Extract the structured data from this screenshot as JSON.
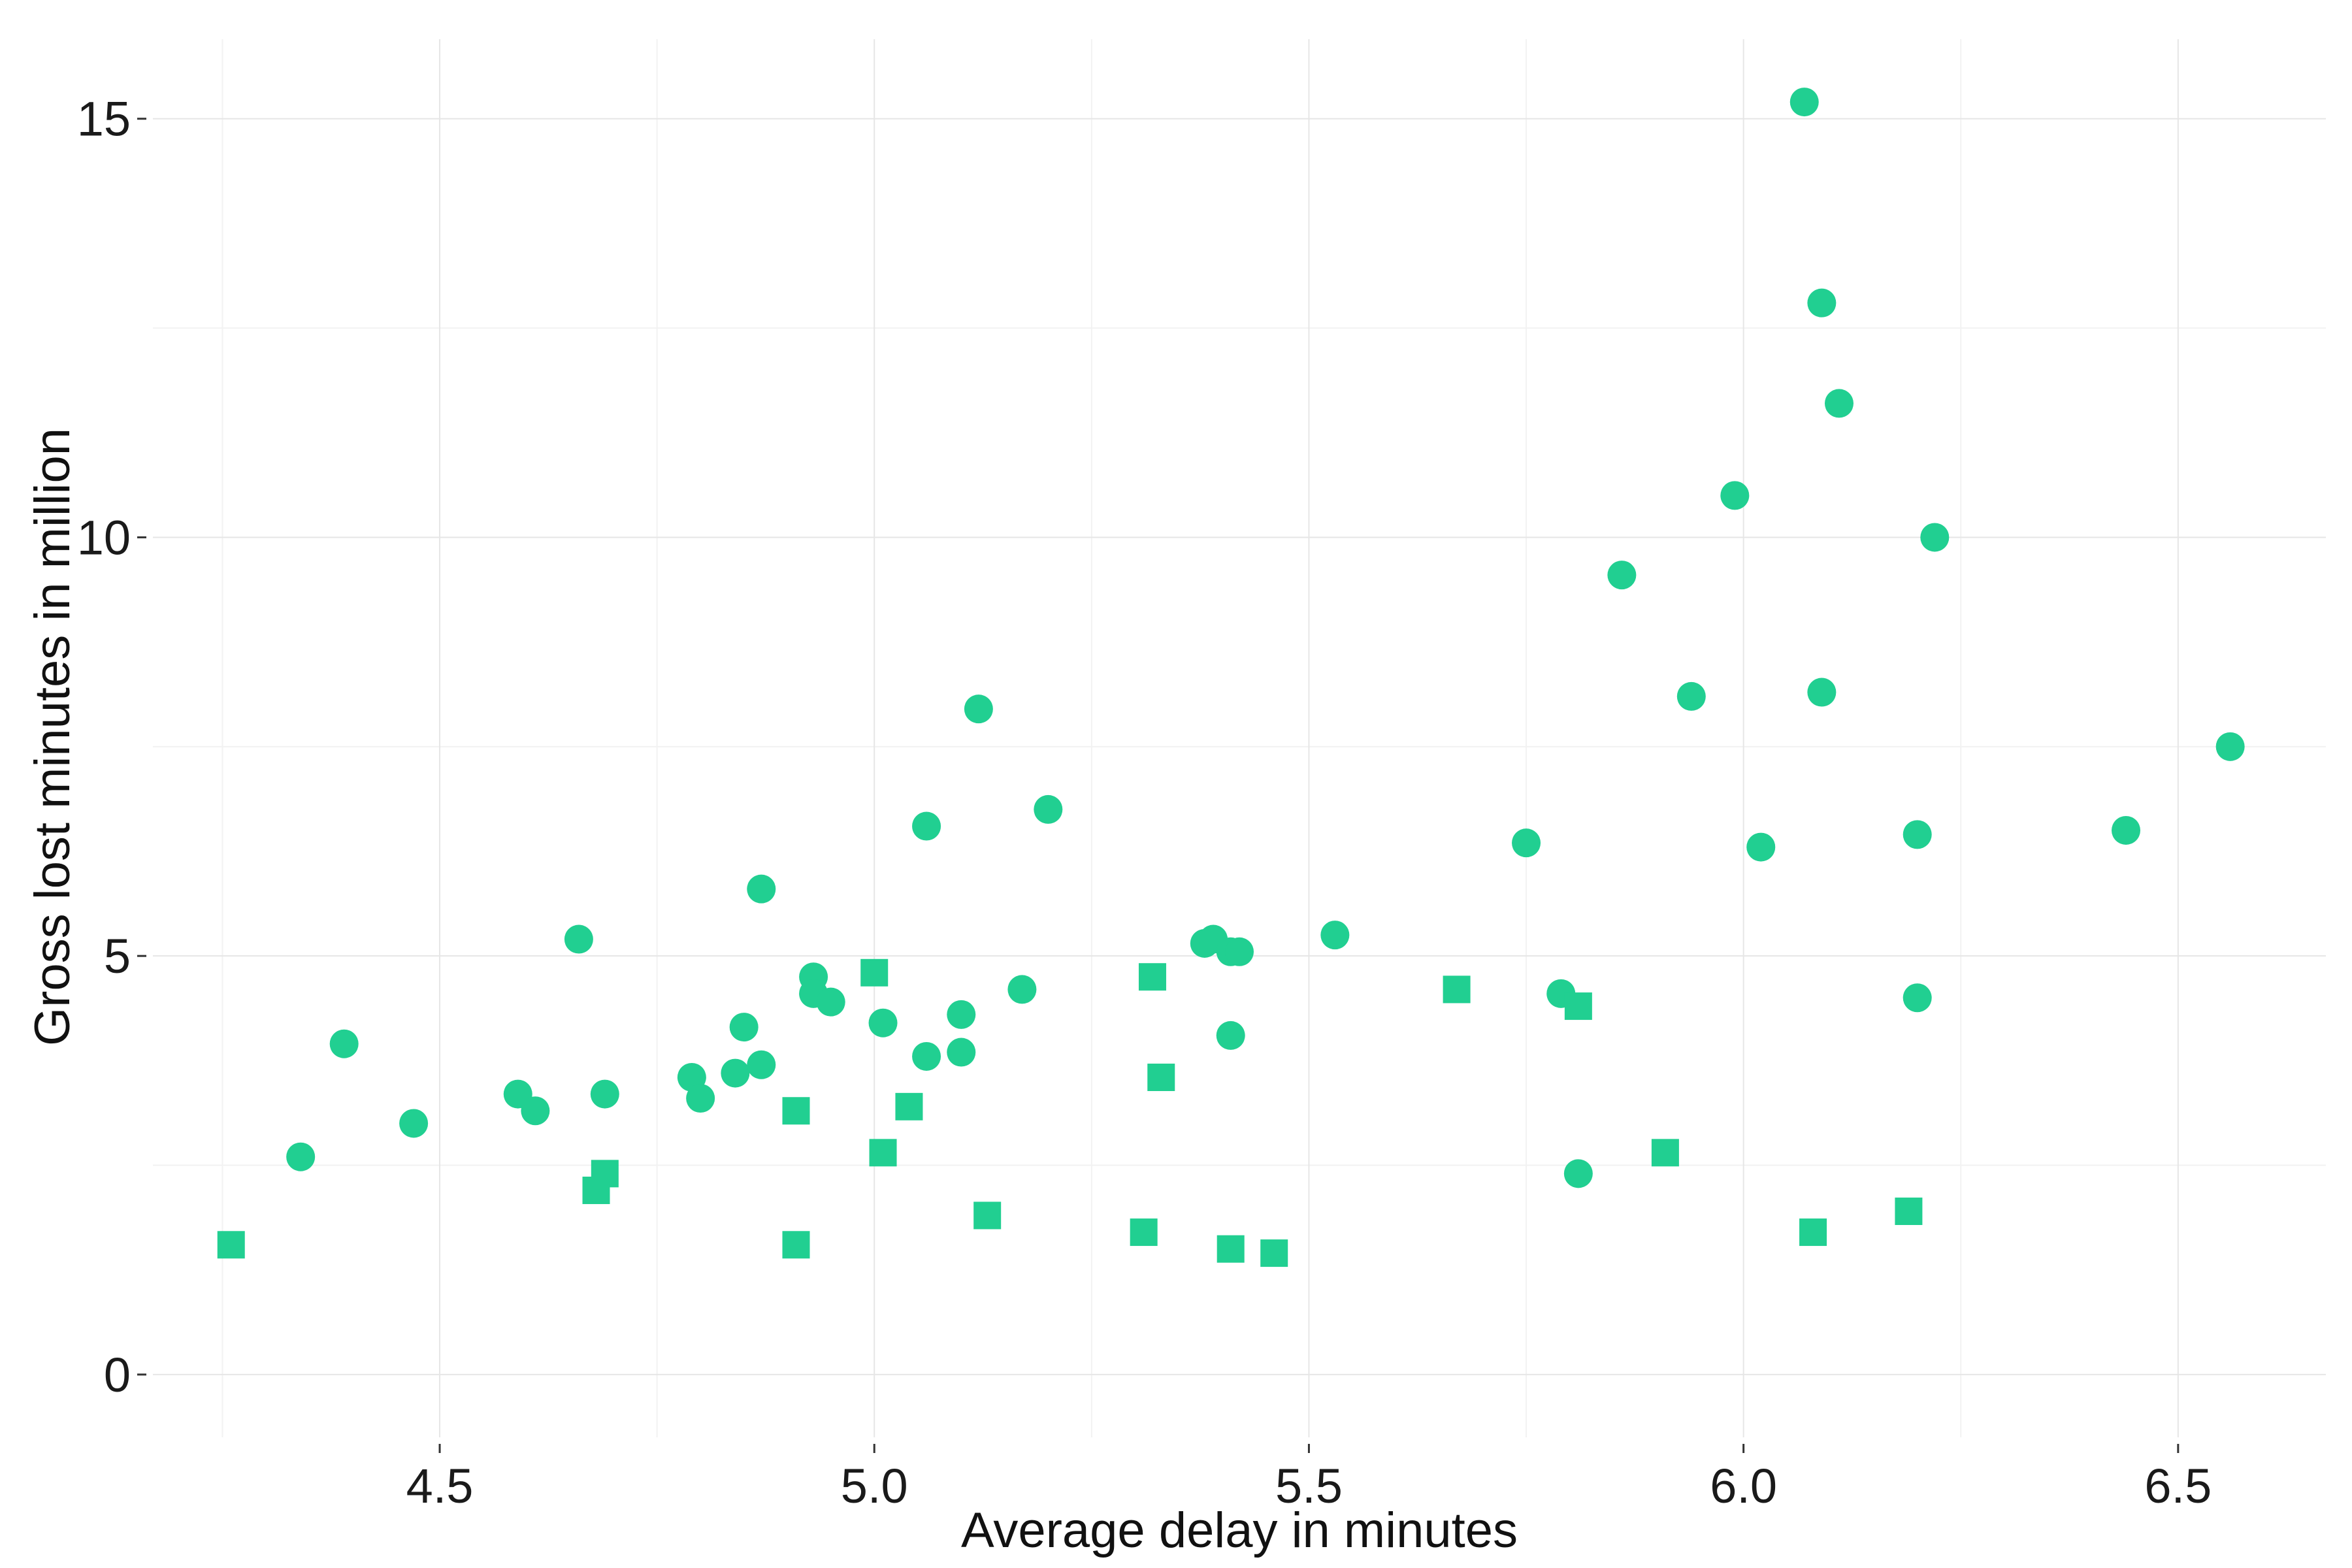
{
  "chart_data": {
    "type": "scatter",
    "title": "",
    "xlabel": "Average delay in minutes",
    "ylabel": "Gross lost minutes in million",
    "xlim": [
      4.17,
      6.67
    ],
    "ylim": [
      -0.75,
      15.95
    ],
    "x_ticks": [
      4.5,
      5.0,
      5.5,
      6.0,
      6.5
    ],
    "x_tick_labels": [
      "4.5",
      "5.0",
      "5.5",
      "6.0",
      "6.5"
    ],
    "y_ticks": [
      0,
      5,
      10,
      15
    ],
    "y_tick_labels": [
      "0",
      "5",
      "10",
      "15"
    ],
    "grid": true,
    "legend": "none",
    "color": "#21cf91",
    "series": [
      {
        "marker": "circle",
        "points": [
          [
            4.34,
            2.6
          ],
          [
            4.39,
            3.95
          ],
          [
            4.47,
            3.0
          ],
          [
            4.59,
            3.35
          ],
          [
            4.61,
            3.15
          ],
          [
            4.66,
            5.2
          ],
          [
            4.69,
            3.35
          ],
          [
            4.79,
            3.55
          ],
          [
            4.8,
            3.3
          ],
          [
            4.84,
            3.6
          ],
          [
            4.85,
            4.15
          ],
          [
            4.87,
            3.7
          ],
          [
            4.87,
            5.8
          ],
          [
            4.93,
            4.75
          ],
          [
            4.93,
            4.55
          ],
          [
            4.95,
            4.45
          ],
          [
            5.01,
            4.2
          ],
          [
            5.06,
            3.8
          ],
          [
            5.06,
            6.55
          ],
          [
            5.1,
            4.3
          ],
          [
            5.1,
            3.85
          ],
          [
            5.12,
            7.95
          ],
          [
            5.17,
            4.6
          ],
          [
            5.2,
            6.75
          ],
          [
            5.38,
            5.15
          ],
          [
            5.39,
            5.2
          ],
          [
            5.41,
            5.05
          ],
          [
            5.41,
            4.05
          ],
          [
            5.42,
            5.05
          ],
          [
            5.53,
            5.25
          ],
          [
            5.75,
            6.35
          ],
          [
            5.79,
            4.55
          ],
          [
            5.81,
            2.4
          ],
          [
            5.86,
            9.55
          ],
          [
            5.94,
            8.1
          ],
          [
            5.99,
            10.5
          ],
          [
            6.02,
            6.3
          ],
          [
            6.07,
            15.2
          ],
          [
            6.09,
            12.8
          ],
          [
            6.09,
            8.15
          ],
          [
            6.11,
            11.6
          ],
          [
            6.2,
            6.45
          ],
          [
            6.2,
            4.5
          ],
          [
            6.22,
            10.0
          ],
          [
            6.44,
            6.5
          ],
          [
            6.56,
            7.5
          ]
        ]
      },
      {
        "marker": "square",
        "points": [
          [
            4.26,
            1.55
          ],
          [
            4.68,
            2.2
          ],
          [
            4.69,
            2.4
          ],
          [
            4.91,
            3.15
          ],
          [
            4.91,
            1.55
          ],
          [
            5.0,
            4.8
          ],
          [
            5.01,
            2.65
          ],
          [
            5.04,
            3.2
          ],
          [
            5.13,
            1.9
          ],
          [
            5.31,
            1.7
          ],
          [
            5.32,
            4.75
          ],
          [
            5.33,
            3.55
          ],
          [
            5.41,
            1.5
          ],
          [
            5.46,
            1.45
          ],
          [
            5.67,
            4.6
          ],
          [
            5.81,
            4.4
          ],
          [
            5.91,
            2.65
          ],
          [
            6.08,
            1.7
          ],
          [
            6.19,
            1.95
          ]
        ]
      }
    ]
  }
}
